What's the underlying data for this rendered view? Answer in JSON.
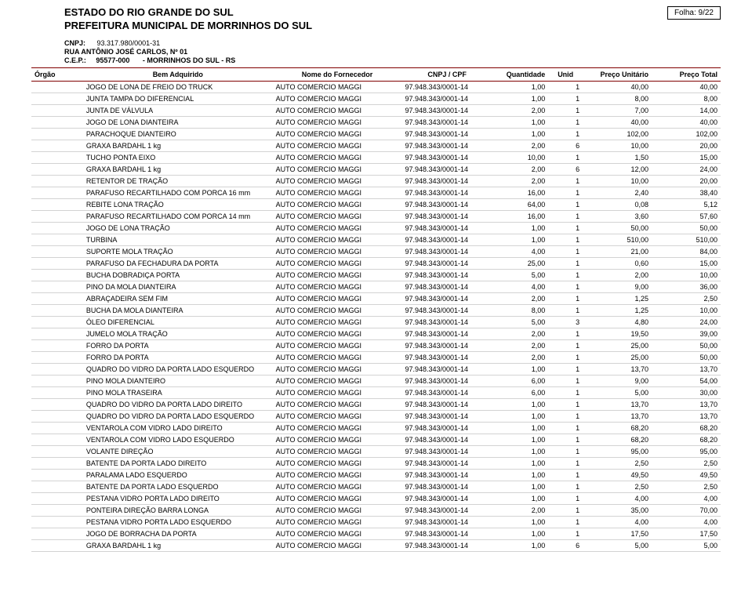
{
  "header": {
    "estado": "ESTADO DO RIO GRANDE DO SUL",
    "prefeitura": "PREFEITURA MUNICIPAL DE MORRINHOS DO SUL",
    "folha_label": "Folha:",
    "folha_value": "9/22",
    "cnpj_label": "CNPJ:",
    "cnpj_value": "93.317.980/0001-31",
    "rua": "RUA ANTÔNIO JOSÉ CARLOS, Nº 01",
    "cep_label": "C.E.P.:",
    "cep_value": "95577-000",
    "cep_city": "- MORRINHOS DO SUL - RS"
  },
  "columns": {
    "orgao": "Órgão",
    "bem": "Bem Adquirido",
    "fornecedor": "Nome do Fornecedor",
    "cnpj": "CNPJ / CPF",
    "qtd": "Quantidade",
    "unid": "Unid",
    "pu": "Preço Unitário",
    "pt": "Preço Total"
  },
  "rows": [
    {
      "bem": "JOGO DE LONA DE FREIO DO TRUCK",
      "forn": "AUTO COMERCIO MAGGI",
      "cnpj": "97.948.343/0001-14",
      "qtd": "1,00",
      "unid": "1",
      "pu": "40,00",
      "pt": "40,00"
    },
    {
      "bem": "JUNTA TAMPA DO DIFERENCIAL",
      "forn": "AUTO COMERCIO MAGGI",
      "cnpj": "97.948.343/0001-14",
      "qtd": "1,00",
      "unid": "1",
      "pu": "8,00",
      "pt": "8,00"
    },
    {
      "bem": "JUNTA DE VÁLVULA",
      "forn": "AUTO COMERCIO MAGGI",
      "cnpj": "97.948.343/0001-14",
      "qtd": "2,00",
      "unid": "1",
      "pu": "7,00",
      "pt": "14,00"
    },
    {
      "bem": "JOGO DE LONA DIANTEIRA",
      "forn": "AUTO COMERCIO MAGGI",
      "cnpj": "97.948.343/0001-14",
      "qtd": "1,00",
      "unid": "1",
      "pu": "40,00",
      "pt": "40,00"
    },
    {
      "bem": "PARACHOQUE DIANTEIRO",
      "forn": "AUTO COMERCIO MAGGI",
      "cnpj": "97.948.343/0001-14",
      "qtd": "1,00",
      "unid": "1",
      "pu": "102,00",
      "pt": "102,00"
    },
    {
      "bem": "GRAXA BARDAHL 1 kg",
      "forn": "AUTO COMERCIO MAGGI",
      "cnpj": "97.948.343/0001-14",
      "qtd": "2,00",
      "unid": "6",
      "pu": "10,00",
      "pt": "20,00"
    },
    {
      "bem": "TUCHO PONTA EIXO",
      "forn": "AUTO COMERCIO MAGGI",
      "cnpj": "97.948.343/0001-14",
      "qtd": "10,00",
      "unid": "1",
      "pu": "1,50",
      "pt": "15,00"
    },
    {
      "bem": "GRAXA BARDAHL 1 kg",
      "forn": "AUTO COMERCIO MAGGI",
      "cnpj": "97.948.343/0001-14",
      "qtd": "2,00",
      "unid": "6",
      "pu": "12,00",
      "pt": "24,00"
    },
    {
      "bem": "RETENTOR DE TRAÇÃO",
      "forn": "AUTO COMERCIO MAGGI",
      "cnpj": "97.948.343/0001-14",
      "qtd": "2,00",
      "unid": "1",
      "pu": "10,00",
      "pt": "20,00"
    },
    {
      "bem": "PARAFUSO RECARTILHADO COM PORCA 16 mm",
      "forn": "AUTO COMERCIO MAGGI",
      "cnpj": "97.948.343/0001-14",
      "qtd": "16,00",
      "unid": "1",
      "pu": "2,40",
      "pt": "38,40"
    },
    {
      "bem": "REBITE LONA TRAÇÃO",
      "forn": "AUTO COMERCIO MAGGI",
      "cnpj": "97.948.343/0001-14",
      "qtd": "64,00",
      "unid": "1",
      "pu": "0,08",
      "pt": "5,12"
    },
    {
      "bem": "PARAFUSO RECARTILHADO COM PORCA 14 mm",
      "forn": "AUTO COMERCIO MAGGI",
      "cnpj": "97.948.343/0001-14",
      "qtd": "16,00",
      "unid": "1",
      "pu": "3,60",
      "pt": "57,60"
    },
    {
      "bem": "JOGO DE LONA TRAÇÃO",
      "forn": "AUTO COMERCIO MAGGI",
      "cnpj": "97.948.343/0001-14",
      "qtd": "1,00",
      "unid": "1",
      "pu": "50,00",
      "pt": "50,00"
    },
    {
      "bem": "TURBINA",
      "forn": "AUTO COMERCIO MAGGI",
      "cnpj": "97.948.343/0001-14",
      "qtd": "1,00",
      "unid": "1",
      "pu": "510,00",
      "pt": "510,00"
    },
    {
      "bem": "SUPORTE MOLA TRAÇÃO",
      "forn": "AUTO COMERCIO MAGGI",
      "cnpj": "97.948.343/0001-14",
      "qtd": "4,00",
      "unid": "1",
      "pu": "21,00",
      "pt": "84,00"
    },
    {
      "bem": "PARAFUSO DA FECHADURA DA PORTA",
      "forn": "AUTO COMERCIO MAGGI",
      "cnpj": "97.948.343/0001-14",
      "qtd": "25,00",
      "unid": "1",
      "pu": "0,60",
      "pt": "15,00"
    },
    {
      "bem": "BUCHA DOBRADIÇA PORTA",
      "forn": "AUTO COMERCIO MAGGI",
      "cnpj": "97.948.343/0001-14",
      "qtd": "5,00",
      "unid": "1",
      "pu": "2,00",
      "pt": "10,00"
    },
    {
      "bem": "PINO DA MOLA DIANTEIRA",
      "forn": "AUTO COMERCIO MAGGI",
      "cnpj": "97.948.343/0001-14",
      "qtd": "4,00",
      "unid": "1",
      "pu": "9,00",
      "pt": "36,00"
    },
    {
      "bem": "ABRAÇADEIRA SEM FIM",
      "forn": "AUTO COMERCIO MAGGI",
      "cnpj": "97.948.343/0001-14",
      "qtd": "2,00",
      "unid": "1",
      "pu": "1,25",
      "pt": "2,50"
    },
    {
      "bem": "BUCHA DA MOLA DIANTEIRA",
      "forn": "AUTO COMERCIO MAGGI",
      "cnpj": "97.948.343/0001-14",
      "qtd": "8,00",
      "unid": "1",
      "pu": "1,25",
      "pt": "10,00"
    },
    {
      "bem": "ÓLEO DIFERENCIAL",
      "forn": "AUTO COMERCIO MAGGI",
      "cnpj": "97.948.343/0001-14",
      "qtd": "5,00",
      "unid": "3",
      "pu": "4,80",
      "pt": "24,00"
    },
    {
      "bem": "JUMELO MOLA TRAÇÃO",
      "forn": "AUTO COMERCIO MAGGI",
      "cnpj": "97.948.343/0001-14",
      "qtd": "2,00",
      "unid": "1",
      "pu": "19,50",
      "pt": "39,00"
    },
    {
      "bem": "FORRO DA PORTA",
      "forn": "AUTO COMERCIO MAGGI",
      "cnpj": "97.948.343/0001-14",
      "qtd": "2,00",
      "unid": "1",
      "pu": "25,00",
      "pt": "50,00"
    },
    {
      "bem": "FORRO DA PORTA",
      "forn": "AUTO COMERCIO MAGGI",
      "cnpj": "97.948.343/0001-14",
      "qtd": "2,00",
      "unid": "1",
      "pu": "25,00",
      "pt": "50,00"
    },
    {
      "bem": "QUADRO DO VIDRO DA PORTA LADO ESQUERDO",
      "forn": "AUTO COMERCIO MAGGI",
      "cnpj": "97.948.343/0001-14",
      "qtd": "1,00",
      "unid": "1",
      "pu": "13,70",
      "pt": "13,70"
    },
    {
      "bem": "PINO MOLA DIANTEIRO",
      "forn": "AUTO COMERCIO MAGGI",
      "cnpj": "97.948.343/0001-14",
      "qtd": "6,00",
      "unid": "1",
      "pu": "9,00",
      "pt": "54,00"
    },
    {
      "bem": "PINO MOLA TRASEIRA",
      "forn": "AUTO COMERCIO MAGGI",
      "cnpj": "97.948.343/0001-14",
      "qtd": "6,00",
      "unid": "1",
      "pu": "5,00",
      "pt": "30,00"
    },
    {
      "bem": "QUADRO DO VIDRO DA PORTA LADO DIREITO",
      "forn": "AUTO COMERCIO MAGGI",
      "cnpj": "97.948.343/0001-14",
      "qtd": "1,00",
      "unid": "1",
      "pu": "13,70",
      "pt": "13,70"
    },
    {
      "bem": "QUADRO DO VIDRO DA PORTA LADO ESQUERDO",
      "forn": "AUTO COMERCIO MAGGI",
      "cnpj": "97.948.343/0001-14",
      "qtd": "1,00",
      "unid": "1",
      "pu": "13,70",
      "pt": "13,70"
    },
    {
      "bem": "VENTAROLA COM VIDRO LADO DIREITO",
      "forn": "AUTO COMERCIO MAGGI",
      "cnpj": "97.948.343/0001-14",
      "qtd": "1,00",
      "unid": "1",
      "pu": "68,20",
      "pt": "68,20"
    },
    {
      "bem": "VENTAROLA COM VIDRO LADO ESQUERDO",
      "forn": "AUTO COMERCIO MAGGI",
      "cnpj": "97.948.343/0001-14",
      "qtd": "1,00",
      "unid": "1",
      "pu": "68,20",
      "pt": "68,20"
    },
    {
      "bem": "VOLANTE DIREÇÃO",
      "forn": "AUTO COMERCIO MAGGI",
      "cnpj": "97.948.343/0001-14",
      "qtd": "1,00",
      "unid": "1",
      "pu": "95,00",
      "pt": "95,00"
    },
    {
      "bem": "BATENTE DA PORTA LADO DIREITO",
      "forn": "AUTO COMERCIO MAGGI",
      "cnpj": "97.948.343/0001-14",
      "qtd": "1,00",
      "unid": "1",
      "pu": "2,50",
      "pt": "2,50"
    },
    {
      "bem": "PARALAMA LADO ESQUERDO",
      "forn": "AUTO COMERCIO MAGGI",
      "cnpj": "97.948.343/0001-14",
      "qtd": "1,00",
      "unid": "1",
      "pu": "49,50",
      "pt": "49,50"
    },
    {
      "bem": "BATENTE DA PORTA LADO ESQUERDO",
      "forn": "AUTO COMERCIO MAGGI",
      "cnpj": "97.948.343/0001-14",
      "qtd": "1,00",
      "unid": "1",
      "pu": "2,50",
      "pt": "2,50"
    },
    {
      "bem": "PESTANA VIDRO PORTA LADO DIREITO",
      "forn": "AUTO COMERCIO MAGGI",
      "cnpj": "97.948.343/0001-14",
      "qtd": "1,00",
      "unid": "1",
      "pu": "4,00",
      "pt": "4,00"
    },
    {
      "bem": "PONTEIRA DIREÇÃO BARRA LONGA",
      "forn": "AUTO COMERCIO MAGGI",
      "cnpj": "97.948.343/0001-14",
      "qtd": "2,00",
      "unid": "1",
      "pu": "35,00",
      "pt": "70,00"
    },
    {
      "bem": "PESTANA VIDRO PORTA LADO ESQUERDO",
      "forn": "AUTO COMERCIO MAGGI",
      "cnpj": "97.948.343/0001-14",
      "qtd": "1,00",
      "unid": "1",
      "pu": "4,00",
      "pt": "4,00"
    },
    {
      "bem": "JOGO DE BORRACHA DA PORTA",
      "forn": "AUTO COMERCIO MAGGI",
      "cnpj": "97.948.343/0001-14",
      "qtd": "1,00",
      "unid": "1",
      "pu": "17,50",
      "pt": "17,50"
    },
    {
      "bem": "GRAXA BARDAHL 1 kg",
      "forn": "AUTO COMERCIO MAGGI",
      "cnpj": "97.948.343/0001-14",
      "qtd": "1,00",
      "unid": "6",
      "pu": "5,00",
      "pt": "5,00"
    }
  ]
}
